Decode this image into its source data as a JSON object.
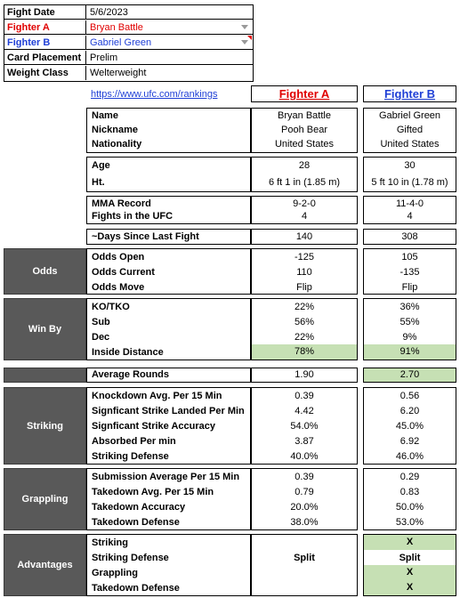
{
  "info": {
    "rows": [
      {
        "key": "Fight Date",
        "value": "5/6/2023"
      },
      {
        "key": "Fighter A",
        "value": "Bryan Battle"
      },
      {
        "key": "Fighter B",
        "value": "Gabriel Green"
      },
      {
        "key": "Card Placement",
        "value": "Prelim"
      },
      {
        "key": "Weight Class",
        "value": "Welterweight"
      }
    ],
    "colors": {
      "fighter_a": "#e00000",
      "fighter_b": "#1f3fd6"
    }
  },
  "header": {
    "link": "https://www.ufc.com/rankings",
    "fighter_a": "Fighter A",
    "fighter_b": "Fighter B"
  },
  "profile": [
    {
      "label": "Name",
      "a": "Bryan Battle",
      "b": "Gabriel Green"
    },
    {
      "label": "Nickname",
      "a": "Pooh Bear",
      "b": "Gifted"
    },
    {
      "label": "Nationality",
      "a": "United States",
      "b": "United States"
    }
  ],
  "physical": [
    {
      "label": "Age",
      "a": "28",
      "b": "30"
    },
    {
      "label": "Ht.",
      "a": "6 ft 1 in (1.85 m)",
      "b": "5 ft 10 in (1.78 m)"
    }
  ],
  "record": [
    {
      "label": "MMA Record",
      "a": "9-2-0",
      "b": "11-4-0"
    },
    {
      "label": "Fights in the UFC",
      "a": "4",
      "b": "4"
    }
  ],
  "days": {
    "label": "~Days Since Last Fight",
    "a": "140",
    "b": "308"
  },
  "odds": {
    "title": "Odds",
    "rows": [
      {
        "label": "Odds Open",
        "a": "-125",
        "b": "105"
      },
      {
        "label": "Odds Current",
        "a": "110",
        "b": "-135"
      },
      {
        "label": "Odds Move",
        "a": "Flip",
        "b": "Flip"
      }
    ]
  },
  "winby": {
    "title": "Win By",
    "rows": [
      {
        "label": "KO/TKO",
        "a": "22%",
        "b": "36%"
      },
      {
        "label": "Sub",
        "a": "56%",
        "b": "55%"
      },
      {
        "label": "Dec",
        "a": "22%",
        "b": "9%"
      },
      {
        "label": "Inside Distance",
        "a": "78%",
        "b": "91%"
      }
    ]
  },
  "rounds": {
    "label": "Average Rounds",
    "a": "1.90",
    "b": "2.70"
  },
  "striking": {
    "title": "Striking",
    "rows": [
      {
        "label": "Knockdown Avg. Per 15 Min",
        "a": "0.39",
        "b": "0.56"
      },
      {
        "label": "Signficant Strike Landed Per Min",
        "a": "4.42",
        "b": "6.20"
      },
      {
        "label": "Signficant Strike Accuracy",
        "a": "54.0%",
        "b": "45.0%"
      },
      {
        "label": "Absorbed Per min",
        "a": "3.87",
        "b": "6.92"
      },
      {
        "label": "Striking Defense",
        "a": "40.0%",
        "b": "46.0%"
      }
    ]
  },
  "grappling": {
    "title": "Grappling",
    "rows": [
      {
        "label": "Submission Average  Per 15 Min",
        "a": "0.39",
        "b": "0.29"
      },
      {
        "label": "Takedown Avg. Per 15 Min",
        "a": "0.79",
        "b": "0.83"
      },
      {
        "label": "Takedown Accuracy",
        "a": "20.0%",
        "b": "50.0%"
      },
      {
        "label": "Takedown Defense",
        "a": "38.0%",
        "b": "53.0%"
      }
    ]
  },
  "advantages": {
    "title": "Advantages",
    "rows": [
      {
        "label": "Striking",
        "a": "",
        "b": "X"
      },
      {
        "label": "Striking Defense",
        "a": "Split",
        "b": "Split"
      },
      {
        "label": "Grappling",
        "a": "",
        "b": "X"
      },
      {
        "label": "Takedown Defense",
        "a": "",
        "b": "X"
      }
    ]
  }
}
